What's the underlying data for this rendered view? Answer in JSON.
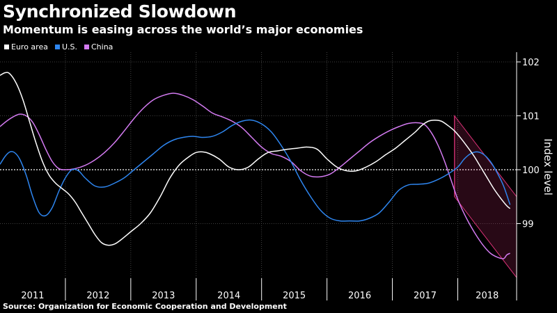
{
  "title": "Synchronized Slowdown",
  "subtitle": "Momentum is easing across the world’s major economies",
  "source": "Source: Organization for Economic Cooperation and Development",
  "legend": [
    {
      "name": "Euro area",
      "color": "#ffffff"
    },
    {
      "name": "U.S.",
      "color": "#2e86f0"
    },
    {
      "name": "China",
      "color": "#d47bf2"
    }
  ],
  "chart_data": {
    "type": "line",
    "xlabel": "",
    "ylabel": "Index level",
    "categories": [
      "2011",
      "2012",
      "2013",
      "2014",
      "2015",
      "2016",
      "2017",
      "2018"
    ],
    "ylim": [
      98,
      102.2
    ],
    "yticks": [
      99,
      100,
      101,
      102
    ],
    "x_range": [
      2011.0,
      2018.9
    ],
    "reference_line": 100,
    "shaded_region": {
      "from": 2017.95,
      "to": 2018.9,
      "upper": [
        101.0,
        99.5
      ],
      "lower": [
        99.5,
        98.0
      ],
      "color": "#e0337a"
    },
    "series": [
      {
        "name": "Euro area",
        "color": "#ffffff",
        "x": [
          2011.0,
          2011.08,
          2011.15,
          2011.25,
          2011.35,
          2011.45,
          2011.55,
          2011.65,
          2011.75,
          2011.85,
          2011.95,
          2012.05,
          2012.15,
          2012.25,
          2012.35,
          2012.45,
          2012.55,
          2012.65,
          2012.75,
          2012.85,
          2013.0,
          2013.15,
          2013.3,
          2013.45,
          2013.6,
          2013.75,
          2013.9,
          2014.0,
          2014.1,
          2014.2,
          2014.35,
          2014.5,
          2014.65,
          2014.8,
          2014.95,
          2015.1,
          2015.25,
          2015.4,
          2015.55,
          2015.7,
          2015.85,
          2016.0,
          2016.15,
          2016.3,
          2016.45,
          2016.6,
          2016.75,
          2016.9,
          2017.05,
          2017.2,
          2017.35,
          2017.45,
          2017.55,
          2017.65,
          2017.75,
          2017.85,
          2017.95,
          2018.05,
          2018.15,
          2018.25,
          2018.35,
          2018.45,
          2018.55,
          2018.65,
          2018.75,
          2018.8
        ],
        "values": [
          101.75,
          101.8,
          101.78,
          101.6,
          101.3,
          100.9,
          100.5,
          100.15,
          99.9,
          99.75,
          99.65,
          99.55,
          99.4,
          99.2,
          99.0,
          98.8,
          98.65,
          98.6,
          98.62,
          98.7,
          98.85,
          99.0,
          99.2,
          99.5,
          99.85,
          100.1,
          100.25,
          100.32,
          100.33,
          100.3,
          100.2,
          100.05,
          100.0,
          100.05,
          100.2,
          100.32,
          100.35,
          100.38,
          100.4,
          100.42,
          100.38,
          100.2,
          100.05,
          99.98,
          99.98,
          100.05,
          100.15,
          100.28,
          100.4,
          100.55,
          100.7,
          100.82,
          100.9,
          100.92,
          100.9,
          100.82,
          100.72,
          100.58,
          100.42,
          100.25,
          100.05,
          99.85,
          99.65,
          99.48,
          99.33,
          99.28
        ]
      },
      {
        "name": "U.S.",
        "color": "#2e86f0",
        "x": [
          2011.0,
          2011.08,
          2011.15,
          2011.22,
          2011.3,
          2011.4,
          2011.5,
          2011.6,
          2011.7,
          2011.8,
          2011.9,
          2012.0,
          2012.1,
          2012.2,
          2012.3,
          2012.45,
          2012.6,
          2012.75,
          2012.9,
          2013.05,
          2013.2,
          2013.35,
          2013.5,
          2013.65,
          2013.8,
          2013.95,
          2014.1,
          2014.25,
          2014.4,
          2014.55,
          2014.7,
          2014.85,
          2015.0,
          2015.15,
          2015.3,
          2015.45,
          2015.6,
          2015.75,
          2015.9,
          2016.05,
          2016.2,
          2016.35,
          2016.5,
          2016.65,
          2016.8,
          2016.95,
          2017.1,
          2017.25,
          2017.4,
          2017.55,
          2017.7,
          2017.85,
          2018.0,
          2018.1,
          2018.2,
          2018.3,
          2018.4,
          2018.5,
          2018.6,
          2018.7,
          2018.8
        ],
        "values": [
          100.1,
          100.25,
          100.33,
          100.32,
          100.2,
          99.9,
          99.5,
          99.2,
          99.15,
          99.3,
          99.6,
          99.85,
          100.0,
          99.98,
          99.85,
          99.7,
          99.68,
          99.75,
          99.85,
          100.0,
          100.15,
          100.3,
          100.45,
          100.55,
          100.6,
          100.62,
          100.6,
          100.62,
          100.7,
          100.82,
          100.9,
          100.92,
          100.85,
          100.7,
          100.45,
          100.15,
          99.8,
          99.5,
          99.25,
          99.1,
          99.05,
          99.05,
          99.05,
          99.1,
          99.2,
          99.4,
          99.62,
          99.72,
          99.73,
          99.75,
          99.82,
          99.92,
          100.05,
          100.2,
          100.3,
          100.33,
          100.28,
          100.15,
          99.95,
          99.7,
          99.35
        ]
      },
      {
        "name": "China",
        "color": "#d47bf2",
        "x": [
          2011.0,
          2011.1,
          2011.2,
          2011.3,
          2011.4,
          2011.5,
          2011.6,
          2011.7,
          2011.8,
          2011.9,
          2012.0,
          2012.15,
          2012.3,
          2012.45,
          2012.6,
          2012.75,
          2012.9,
          2013.05,
          2013.2,
          2013.35,
          2013.5,
          2013.65,
          2013.8,
          2013.95,
          2014.1,
          2014.25,
          2014.4,
          2014.55,
          2014.7,
          2014.85,
          2015.0,
          2015.15,
          2015.3,
          2015.45,
          2015.6,
          2015.75,
          2015.9,
          2016.05,
          2016.2,
          2016.35,
          2016.5,
          2016.65,
          2016.8,
          2016.95,
          2017.1,
          2017.25,
          2017.4,
          2017.5,
          2017.6,
          2017.7,
          2017.8,
          2017.9,
          2018.0,
          2018.1,
          2018.2,
          2018.3,
          2018.4,
          2018.5,
          2018.6,
          2018.7,
          2018.75,
          2018.8
        ],
        "values": [
          100.8,
          100.9,
          100.98,
          101.03,
          101.0,
          100.88,
          100.65,
          100.38,
          100.15,
          100.02,
          100.0,
          100.02,
          100.08,
          100.18,
          100.32,
          100.5,
          100.72,
          100.95,
          101.15,
          101.3,
          101.38,
          101.42,
          101.38,
          101.3,
          101.18,
          101.05,
          100.98,
          100.9,
          100.78,
          100.6,
          100.42,
          100.3,
          100.25,
          100.15,
          99.98,
          99.88,
          99.87,
          99.92,
          100.05,
          100.2,
          100.35,
          100.5,
          100.62,
          100.72,
          100.8,
          100.86,
          100.87,
          100.83,
          100.68,
          100.45,
          100.15,
          99.8,
          99.45,
          99.18,
          98.95,
          98.75,
          98.58,
          98.45,
          98.38,
          98.35,
          98.42,
          98.45
        ]
      }
    ]
  }
}
